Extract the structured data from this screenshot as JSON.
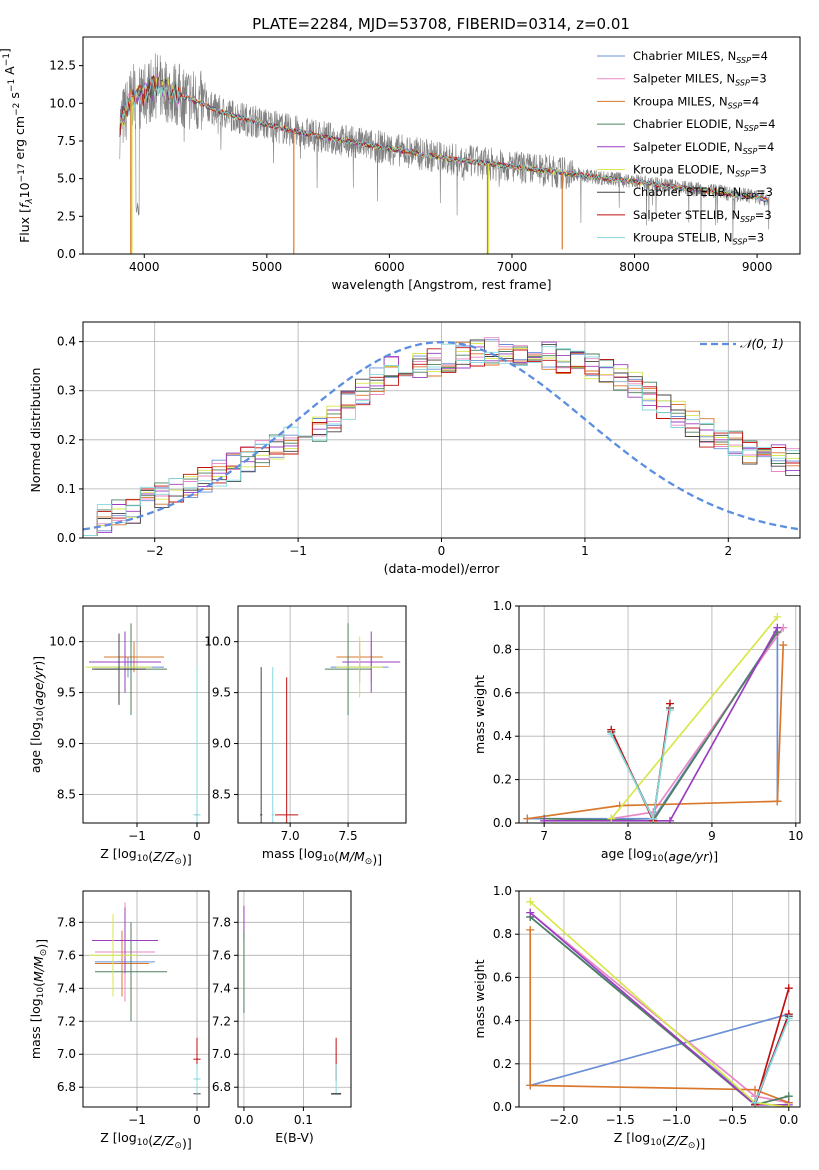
{
  "figure_title": "PLATE=2284, MJD=53708, FIBERID=0314, z=0.01",
  "colors": {
    "Chabrier MILES": "#6b8fd6",
    "Salpeter MILES": "#e887c4",
    "Kroupa MILES": "#d9782d",
    "Chabrier ELODIE": "#4d7f5f",
    "Salpeter ELODIE": "#9b3fc0",
    "Kroupa ELODIE": "#d8e84a",
    "Chabrier STELIB": "#444444",
    "Salpeter STELIB": "#c01010",
    "Kroupa STELIB": "#84d8dc",
    "data": "#808080",
    "normal": "#5b8ee0",
    "grid": "#b0b0b0"
  },
  "chart_data": [
    {
      "id": "spectrum",
      "type": "line",
      "title": "PLATE=2284, MJD=53708, FIBERID=0314, z=0.01",
      "xlabel": "wavelength [Angstrom, rest frame]",
      "ylabel": "Flux [fλ10−17 erg cm−2 s−1 A−1]",
      "xlim": [
        3500,
        9350
      ],
      "ylim": [
        0,
        14.4
      ],
      "xticks": [
        4000,
        5000,
        6000,
        7000,
        8000,
        9000
      ],
      "yticks": [
        0.0,
        2.5,
        5.0,
        7.5,
        10.0,
        12.5
      ],
      "grid": false,
      "legend_position": "top-right",
      "legend": [
        "Chabrier MILES, NSSP=4",
        "Salpeter MILES, NSSP=3",
        "Kroupa MILES, NSSP=4",
        "Chabrier ELODIE, NSSP=4",
        "Salpeter ELODIE, NSSP=4",
        "Kroupa ELODIE, NSSP=3",
        "Chabrier STELIB, NSSP=3",
        "Salpeter STELIB, NSSP=3",
        "Kroupa STELIB, NSSP=3"
      ],
      "continuum_x": [
        3800,
        3900,
        4000,
        4100,
        4200,
        4400,
        4600,
        4800,
        5000,
        5200,
        5500,
        6000,
        6500,
        7000,
        7500,
        8000,
        8500,
        9000,
        9100
      ],
      "continuum_y": [
        8.5,
        10.4,
        10.6,
        11.2,
        10.8,
        10.2,
        9.5,
        9.0,
        8.6,
        8.2,
        7.7,
        7.0,
        6.3,
        5.8,
        5.3,
        4.8,
        4.3,
        3.8,
        3.5
      ],
      "model_gaps": [
        {
          "series": "Kroupa MILES",
          "x": 5220,
          "y_min": 0
        },
        {
          "series": "Kroupa MILES",
          "x": 6800,
          "y_min": 0
        },
        {
          "series": "Kroupa ELODIE",
          "x": 6810,
          "y_min": 0
        },
        {
          "series": "Kroupa MILES",
          "x": 7410,
          "y_min": 0.3
        },
        {
          "series": "Kroupa ELODIE",
          "x": 3900,
          "y_min": 0
        },
        {
          "series": "Kroupa MILES",
          "x": 3890,
          "y_min": 0
        }
      ]
    },
    {
      "id": "residuals",
      "type": "histogram",
      "xlabel": "(data-model)/error",
      "ylabel": "Normed distribution",
      "xlim": [
        -2.5,
        2.5
      ],
      "ylim": [
        0,
        0.44
      ],
      "xticks": [
        -2,
        -1,
        0,
        1,
        2
      ],
      "yticks": [
        0.0,
        0.1,
        0.2,
        0.3,
        0.4
      ],
      "grid": true,
      "legend": [
        "𝒩(0, 1)"
      ],
      "legend_position": "top-right",
      "bin_width": 0.1,
      "envelope": [
        0.035,
        0.04,
        0.05,
        0.06,
        0.075,
        0.085,
        0.1,
        0.11,
        0.12,
        0.13,
        0.145,
        0.16,
        0.175,
        0.19,
        0.2,
        0.21,
        0.225,
        0.245,
        0.27,
        0.3,
        0.32,
        0.34,
        0.345,
        0.35,
        0.36,
        0.365,
        0.37,
        0.375,
        0.38,
        0.38,
        0.38,
        0.37,
        0.37,
        0.36,
        0.355,
        0.35,
        0.34,
        0.33,
        0.31,
        0.29,
        0.27,
        0.25,
        0.23,
        0.215,
        0.2,
        0.19,
        0.18,
        0.17,
        0.16,
        0.155,
        0.145,
        0.13,
        0.11,
        0.095,
        0.08,
        0.07,
        0.06,
        0.055,
        0.05,
        0.045,
        0.04,
        0.04,
        0.035,
        0.035,
        0.03,
        0.03,
        0.028,
        0.026,
        0.025,
        0.025,
        0.03,
        0.035,
        0.04,
        0.045,
        0.05,
        0.05,
        0.05,
        0.05,
        0.05,
        0.05
      ]
    },
    {
      "id": "age-vs-Z",
      "type": "errorbar",
      "xlabel": "Z [log10(Z/Z⊙)]",
      "ylabel": "age  [log10(age/yr)]",
      "xlim": [
        -1.9,
        0.2
      ],
      "ylim": [
        8.22,
        10.35
      ],
      "xticks": [
        -1,
        0
      ],
      "yticks": [
        8.5,
        9.0,
        9.5,
        10.0
      ],
      "grid": true,
      "points": [
        {
          "series": "Chabrier MILES",
          "x": -1.15,
          "xerr": 0.6,
          "y": 9.75,
          "yerr": 0.1
        },
        {
          "series": "Salpeter MILES",
          "x": -1.2,
          "xerr": 0.5,
          "y": 9.8,
          "yerr": 0.2
        },
        {
          "series": "Kroupa MILES",
          "x": -1.05,
          "xerr": 0.5,
          "y": 9.85,
          "yerr": 0.15
        },
        {
          "series": "Chabrier ELODIE",
          "x": -1.1,
          "xerr": 0.6,
          "y": 9.73,
          "yerr": 0.45
        },
        {
          "series": "Salpeter ELODIE",
          "x": -1.2,
          "xerr": 0.6,
          "y": 9.8,
          "yerr": 0.3
        },
        {
          "series": "Kroupa ELODIE",
          "x": -1.3,
          "xerr": 0.55,
          "y": 9.75,
          "yerr": 0.3
        },
        {
          "series": "Chabrier STELIB",
          "x": -1.3,
          "xerr": 0.45,
          "y": 9.73,
          "yerr": 0.35
        },
        {
          "series": "Salpeter STELIB",
          "x": 0.0,
          "xerr": 0.02,
          "y": 8.3,
          "yerr": 1.35
        },
        {
          "series": "Kroupa STELIB",
          "x": 0.0,
          "xerr": 0.06,
          "y": 8.3,
          "yerr": 1.45
        }
      ]
    },
    {
      "id": "age-vs-mass",
      "type": "errorbar",
      "xlabel": "mass [log10(M/M⊙)]",
      "ylabel": "",
      "xlim": [
        6.55,
        8.0
      ],
      "ylim": [
        8.22,
        10.35
      ],
      "xticks": [
        7.0,
        7.5
      ],
      "yticks": [
        8.5,
        9.0,
        9.5,
        10.0
      ],
      "grid": true,
      "points": [
        {
          "series": "Chabrier MILES",
          "x": 7.6,
          "xerr": 0.25,
          "y": 9.75,
          "yerr": 0.15
        },
        {
          "series": "Salpeter MILES",
          "x": 7.7,
          "xerr": 0.2,
          "y": 9.8,
          "yerr": 0.2
        },
        {
          "series": "Kroupa MILES",
          "x": 7.6,
          "xerr": 0.2,
          "y": 9.85,
          "yerr": 0.15
        },
        {
          "series": "Chabrier ELODIE",
          "x": 7.5,
          "xerr": 0.2,
          "y": 9.73,
          "yerr": 0.45
        },
        {
          "series": "Salpeter ELODIE",
          "x": 7.7,
          "xerr": 0.25,
          "y": 9.8,
          "yerr": 0.3
        },
        {
          "series": "Kroupa ELODIE",
          "x": 7.6,
          "xerr": 0.2,
          "y": 9.75,
          "yerr": 0.3
        },
        {
          "series": "Chabrier STELIB",
          "x": 6.75,
          "xerr": 0.01,
          "y": 8.3,
          "yerr": 1.45
        },
        {
          "series": "Salpeter STELIB",
          "x": 6.97,
          "xerr": 0.1,
          "y": 8.3,
          "yerr": 1.35
        },
        {
          "series": "Kroupa STELIB",
          "x": 6.85,
          "xerr": 0.01,
          "y": 8.3,
          "yerr": 1.45
        }
      ]
    },
    {
      "id": "weight-vs-age",
      "type": "line",
      "xlabel": "age  [log10(age/yr)]",
      "ylabel": "mass weight",
      "xlim": [
        6.7,
        10.05
      ],
      "ylim": [
        0,
        1.0
      ],
      "xticks": [
        7,
        8,
        9,
        10
      ],
      "yticks": [
        0.0,
        0.2,
        0.4,
        0.6,
        0.8,
        1.0
      ],
      "grid": true,
      "series": [
        {
          "name": "Chabrier MILES",
          "x": [
            6.8,
            8.3,
            9.78,
            9.78
          ],
          "y": [
            0.02,
            0.02,
            0.88,
            0.1
          ]
        },
        {
          "name": "Salpeter MILES",
          "x": [
            7.8,
            8.3,
            9.85
          ],
          "y": [
            0.02,
            0.05,
            0.9
          ]
        },
        {
          "name": "Kroupa MILES",
          "x": [
            6.8,
            7.9,
            9.78,
            9.85,
            9.78
          ],
          "y": [
            0.02,
            0.08,
            0.1,
            0.82,
            0.1
          ]
        },
        {
          "name": "Chabrier ELODIE",
          "x": [
            7.0,
            8.3,
            9.78
          ],
          "y": [
            0.02,
            0.01,
            0.88
          ]
        },
        {
          "name": "Salpeter ELODIE",
          "x": [
            7.0,
            8.5,
            9.78
          ],
          "y": [
            0.01,
            0.01,
            0.9
          ]
        },
        {
          "name": "Kroupa ELODIE",
          "x": [
            7.8,
            9.78
          ],
          "y": [
            0.02,
            0.95
          ]
        },
        {
          "name": "Chabrier STELIB",
          "x": [
            7.8,
            8.3,
            8.5
          ],
          "y": [
            0.42,
            0.02,
            0.53
          ]
        },
        {
          "name": "Salpeter STELIB",
          "x": [
            7.8,
            8.3,
            8.5
          ],
          "y": [
            0.43,
            0.01,
            0.55
          ]
        },
        {
          "name": "Kroupa STELIB",
          "x": [
            7.8,
            8.3,
            8.5
          ],
          "y": [
            0.41,
            0.02,
            0.52
          ]
        }
      ]
    },
    {
      "id": "mass-vs-Z",
      "type": "errorbar",
      "xlabel": "Z [log10(Z/Z⊙)]",
      "ylabel": "mass [log10(M/M⊙)]",
      "xlim": [
        -1.9,
        0.2
      ],
      "ylim": [
        6.68,
        7.99
      ],
      "xticks": [
        -1,
        0
      ],
      "yticks": [
        6.8,
        7.0,
        7.2,
        7.4,
        7.6,
        7.8
      ],
      "grid": true,
      "points": [
        {
          "series": "Chabrier MILES",
          "x": -1.2,
          "xerr": 0.5,
          "y": 7.56,
          "yerr": 0.15
        },
        {
          "series": "Salpeter MILES",
          "x": -1.2,
          "xerr": 0.5,
          "y": 7.62,
          "yerr": 0.3
        },
        {
          "series": "Kroupa MILES",
          "x": -1.25,
          "xerr": 0.45,
          "y": 7.55,
          "yerr": 0.2
        },
        {
          "series": "Chabrier ELODIE",
          "x": -1.1,
          "xerr": 0.6,
          "y": 7.5,
          "yerr": 0.3
        },
        {
          "series": "Salpeter ELODIE",
          "x": -1.2,
          "xerr": 0.55,
          "y": 7.69,
          "yerr": 0.2
        },
        {
          "series": "Kroupa ELODIE",
          "x": -1.4,
          "xerr": 0.4,
          "y": 7.6,
          "yerr": 0.25
        },
        {
          "series": "Chabrier STELIB",
          "x": 0.0,
          "xerr": 0.06,
          "y": 6.76,
          "yerr": 0.0
        },
        {
          "series": "Salpeter STELIB",
          "x": 0.0,
          "xerr": 0.06,
          "y": 6.97,
          "yerr": 0.13
        },
        {
          "series": "Kroupa STELIB",
          "x": 0.0,
          "xerr": 0.06,
          "y": 6.85,
          "yerr": 0.09
        }
      ]
    },
    {
      "id": "mass-vs-ebv",
      "type": "errorbar",
      "xlabel": "E(B-V)",
      "ylabel": "",
      "xlim": [
        -0.01,
        0.18
      ],
      "ylim": [
        6.68,
        7.99
      ],
      "xticks": [
        0.0,
        0.1
      ],
      "yticks": [
        6.8,
        7.0,
        7.2,
        7.4,
        7.6,
        7.8
      ],
      "grid": true,
      "points": [
        {
          "series": "Kroupa ELODIE",
          "x": 0.0,
          "xerr": 0,
          "y": 7.55,
          "yerr": 0.2
        },
        {
          "series": "Salpeter ELODIE",
          "x": 0.0,
          "xerr": 0,
          "y": 7.8,
          "yerr": 0.1
        },
        {
          "series": "Chabrier ELODIE",
          "x": 0.0,
          "xerr": 0,
          "y": 7.5,
          "yerr": 0.25
        },
        {
          "series": "Salpeter STELIB",
          "x": 0.155,
          "xerr": 0,
          "y": 6.97,
          "yerr": 0.13
        },
        {
          "series": "Kroupa STELIB",
          "x": 0.155,
          "xerr": 0,
          "y": 6.85,
          "yerr": 0.09
        },
        {
          "series": "Chabrier STELIB",
          "x": 0.155,
          "xerr": 0,
          "y": 6.76,
          "yerr": 0.0
        }
      ]
    },
    {
      "id": "weight-vs-Z",
      "type": "line",
      "xlabel": "Z [log10(Z/Z⊙)]",
      "ylabel": "mass weight",
      "xlim": [
        -2.4,
        0.1
      ],
      "ylim": [
        0,
        1.0
      ],
      "xticks": [
        -2.0,
        -1.5,
        -1.0,
        -0.5,
        0.0
      ],
      "yticks": [
        0.0,
        0.2,
        0.4,
        0.6,
        0.8,
        1.0
      ],
      "grid": true,
      "series": [
        {
          "name": "Chabrier MILES",
          "x": [
            -2.3,
            -0.3,
            0.0,
            -2.3
          ],
          "y": [
            0.88,
            0.02,
            0.43,
            0.1
          ]
        },
        {
          "name": "Salpeter MILES",
          "x": [
            -2.3,
            -0.3,
            0.0
          ],
          "y": [
            0.9,
            0.05,
            0.02
          ]
        },
        {
          "name": "Kroupa MILES",
          "x": [
            -2.3,
            -2.3,
            -0.3,
            0.0
          ],
          "y": [
            0.82,
            0.1,
            0.08,
            0.02
          ]
        },
        {
          "name": "Chabrier ELODIE",
          "x": [
            -2.3,
            -0.3,
            0.0
          ],
          "y": [
            0.88,
            0.01,
            0.05
          ]
        },
        {
          "name": "Salpeter ELODIE",
          "x": [
            -2.3,
            -0.3,
            0.0
          ],
          "y": [
            0.9,
            0.01,
            0.01
          ]
        },
        {
          "name": "Kroupa ELODIE",
          "x": [
            -2.3,
            -0.3,
            0.0
          ],
          "y": [
            0.95,
            0.02,
            0.0
          ]
        },
        {
          "name": "Chabrier STELIB",
          "x": [
            -0.3,
            0.0
          ],
          "y": [
            0.02,
            0.42
          ]
        },
        {
          "name": "Salpeter STELIB",
          "x": [
            -0.3,
            0.0,
            -0.3,
            0.0
          ],
          "y": [
            0.01,
            0.55,
            0.01,
            0.43
          ]
        },
        {
          "name": "Kroupa STELIB",
          "x": [
            -0.3,
            0.0
          ],
          "y": [
            0.02,
            0.41
          ]
        }
      ]
    }
  ]
}
